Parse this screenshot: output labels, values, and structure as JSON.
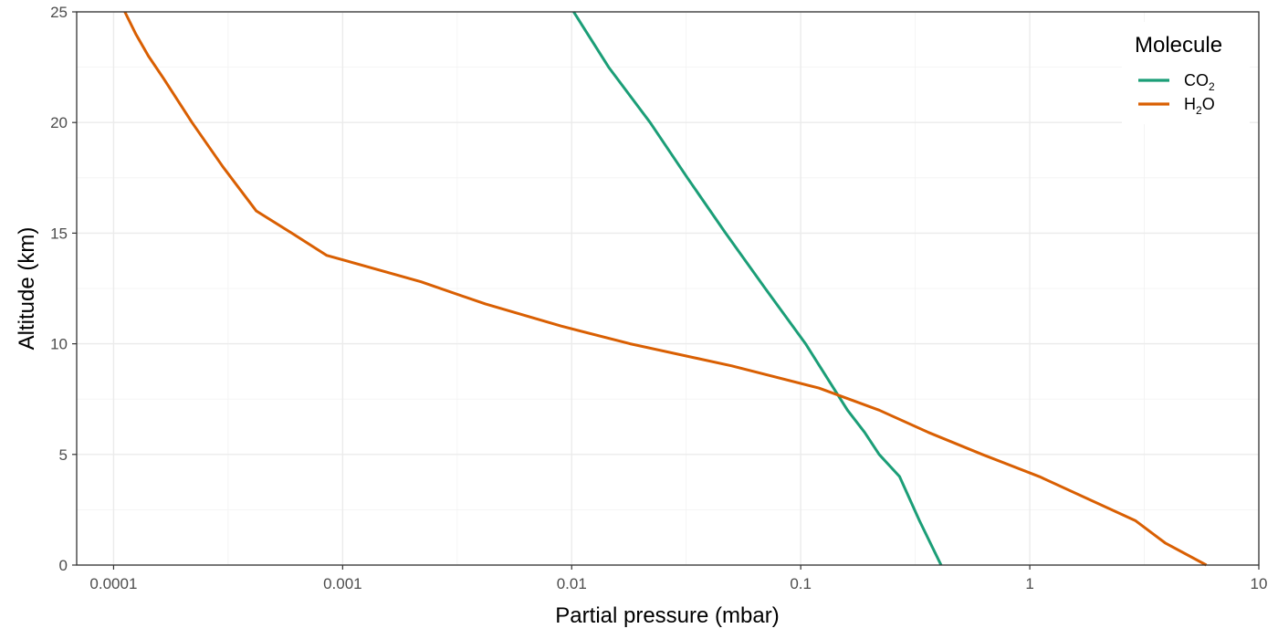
{
  "chart_data": {
    "type": "line",
    "title": "",
    "xlabel": "Partial pressure (mbar)",
    "ylabel": "Altitude (km)",
    "x_scale": "log10",
    "xlim": [
      6.9e-05,
      10
    ],
    "ylim": [
      0,
      25
    ],
    "x_ticks": [
      0.0001,
      0.001,
      0.01,
      0.1,
      1,
      10
    ],
    "x_tick_labels": [
      "0.0001",
      "0.001",
      "0.01",
      "0.1",
      "1",
      "10"
    ],
    "y_ticks": [
      0,
      5,
      10,
      15,
      20,
      25
    ],
    "y_tick_labels": [
      "0",
      "5",
      "10",
      "15",
      "20",
      "25"
    ],
    "grid": true,
    "legend": {
      "title": "Molecule",
      "position": "top-right",
      "entries": [
        {
          "base": "CO",
          "sub": "2",
          "suffix": "",
          "color": "#1b9e77"
        },
        {
          "base": "H",
          "sub": "2",
          "suffix": "O",
          "color": "#d95f02"
        }
      ]
    },
    "series": [
      {
        "color": "#1b9e77",
        "x": [
          0.41,
          0.33,
          0.27,
          0.22,
          0.19,
          0.16,
          0.105,
          0.07,
          0.047,
          0.032,
          0.022,
          0.0145,
          0.0102
        ],
        "y": [
          0,
          2,
          4,
          5,
          6,
          7,
          10,
          12.5,
          15,
          17.5,
          20,
          22.5,
          25
        ]
      },
      {
        "color": "#d95f02",
        "x": [
          5.9,
          3.9,
          2.9,
          1.1,
          0.62,
          0.36,
          0.22,
          0.12,
          0.05,
          0.018,
          0.009,
          0.0042,
          0.0022,
          0.00085,
          0.0006,
          0.00042,
          0.0003,
          0.00022,
          0.000165,
          0.000142,
          0.000125,
          0.000112
        ],
        "y": [
          0,
          1,
          2,
          4,
          5,
          6,
          7,
          8,
          9,
          10,
          10.8,
          11.8,
          12.8,
          14,
          15,
          16,
          18,
          20,
          22,
          23,
          24,
          25
        ]
      }
    ]
  }
}
